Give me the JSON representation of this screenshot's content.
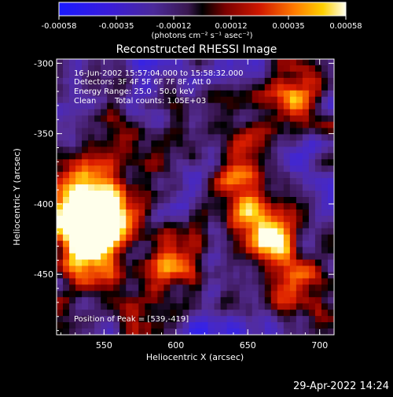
{
  "footer": {
    "timestamp": "29-Apr-2022 14:24"
  },
  "chart_data": {
    "type": "heatmap",
    "title": "Reconstructed RHESSI Image",
    "xlabel": "Heliocentric X (arcsec)",
    "ylabel": "Heliocentric Y (arcsec)",
    "xlim": [
      517,
      710
    ],
    "ylim": [
      -493,
      -297
    ],
    "x_ticks": [
      "550",
      "600",
      "650",
      "700"
    ],
    "x_tick_values": [
      550,
      600,
      650,
      700
    ],
    "y_ticks": [
      "-300",
      "-350",
      "-400",
      "-450"
    ],
    "y_tick_values": [
      -300,
      -350,
      -400,
      -450
    ],
    "colorbar": {
      "min": -0.00058,
      "max": 0.00058,
      "tick_labels": [
        "-0.00058",
        "-0.00035",
        "-0.00012",
        "0.00012",
        "0.00035",
        "0.00058"
      ],
      "label": "(photons cm⁻² s⁻¹ asec⁻²)",
      "colormap": "blue-purple-red-yellow-white"
    },
    "annotations": {
      "time_range": "16-Jun-2002 15:57:04.000 to 15:58:32.000",
      "detectors": "Detectors: 3F 4F 5F 6F 7F 8F, Att 0",
      "energy": "Energy Range: 25.0 - 50.0 keV",
      "method": "Clean",
      "total_counts": "Total counts: 1.05E+03",
      "peak": "Position of Peak = [539,-419]"
    },
    "peak_position": [
      539,
      -419
    ],
    "peak_markers": [
      {
        "x": 539,
        "y": -419,
        "intensity": 1.0
      },
      {
        "x": 665,
        "y": -425,
        "intensity": 0.92
      },
      {
        "x": 530,
        "y": -383,
        "intensity": 0.6
      },
      {
        "x": 555,
        "y": -405,
        "intensity": 0.7
      },
      {
        "x": 690,
        "y": -325,
        "intensity": 0.65
      },
      {
        "x": 652,
        "y": -395,
        "intensity": 0.55
      },
      {
        "x": 530,
        "y": -450,
        "intensity": 0.55
      },
      {
        "x": 600,
        "y": -440,
        "intensity": 0.5
      },
      {
        "x": 580,
        "y": -470,
        "intensity": 0.45
      },
      {
        "x": 690,
        "y": -455,
        "intensity": 0.45
      },
      {
        "x": 640,
        "y": -360,
        "intensity": 0.4
      },
      {
        "x": 560,
        "y": -350,
        "intensity": 0.35
      }
    ]
  }
}
